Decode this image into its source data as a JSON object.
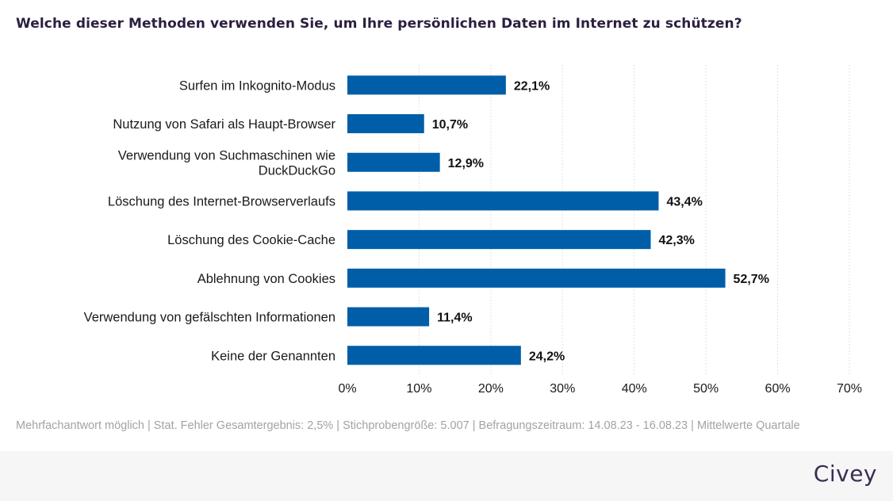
{
  "title": "Welche dieser Methoden verwenden Sie, um Ihre persönlichen Daten im Internet zu schützen?",
  "footnote": "Mehrfachantwort möglich | Stat. Fehler Gesamtergebnis: 2,5% | Stichprobengröße: 5.007 | Befragungszeitraum: 14.08.23 - 16.08.23 | Mittelwerte Quartale",
  "brand": "Civey",
  "colors": {
    "bar": "#005ea8",
    "title": "#2b1f3f",
    "grid": "#d9d9d9",
    "footnote": "#a3a3a3"
  },
  "chart_data": {
    "type": "bar",
    "orientation": "horizontal",
    "categories": [
      [
        "Surfen im Inkognito-Modus"
      ],
      [
        "Nutzung von Safari als Haupt-Browser"
      ],
      [
        "Verwendung von Suchmaschinen wie",
        "DuckDuckGo"
      ],
      [
        "Löschung des Internet-Browserverlaufs"
      ],
      [
        "Löschung des Cookie-Cache"
      ],
      [
        "Ablehnung von Cookies"
      ],
      [
        "Verwendung von gefälschten Informationen"
      ],
      [
        "Keine der Genannten"
      ]
    ],
    "values": [
      22.1,
      10.7,
      12.9,
      43.4,
      42.3,
      52.7,
      11.4,
      24.2
    ],
    "value_labels": [
      "22,1%",
      "10,7%",
      "12,9%",
      "43,4%",
      "42,3%",
      "52,7%",
      "11,4%",
      "24,2%"
    ],
    "xlim": [
      0,
      70
    ],
    "ticks": [
      0,
      10,
      20,
      30,
      40,
      50,
      60,
      70
    ],
    "tick_labels": [
      "0%",
      "10%",
      "20%",
      "30%",
      "40%",
      "50%",
      "60%",
      "70%"
    ],
    "grid": "vertical dotted"
  }
}
